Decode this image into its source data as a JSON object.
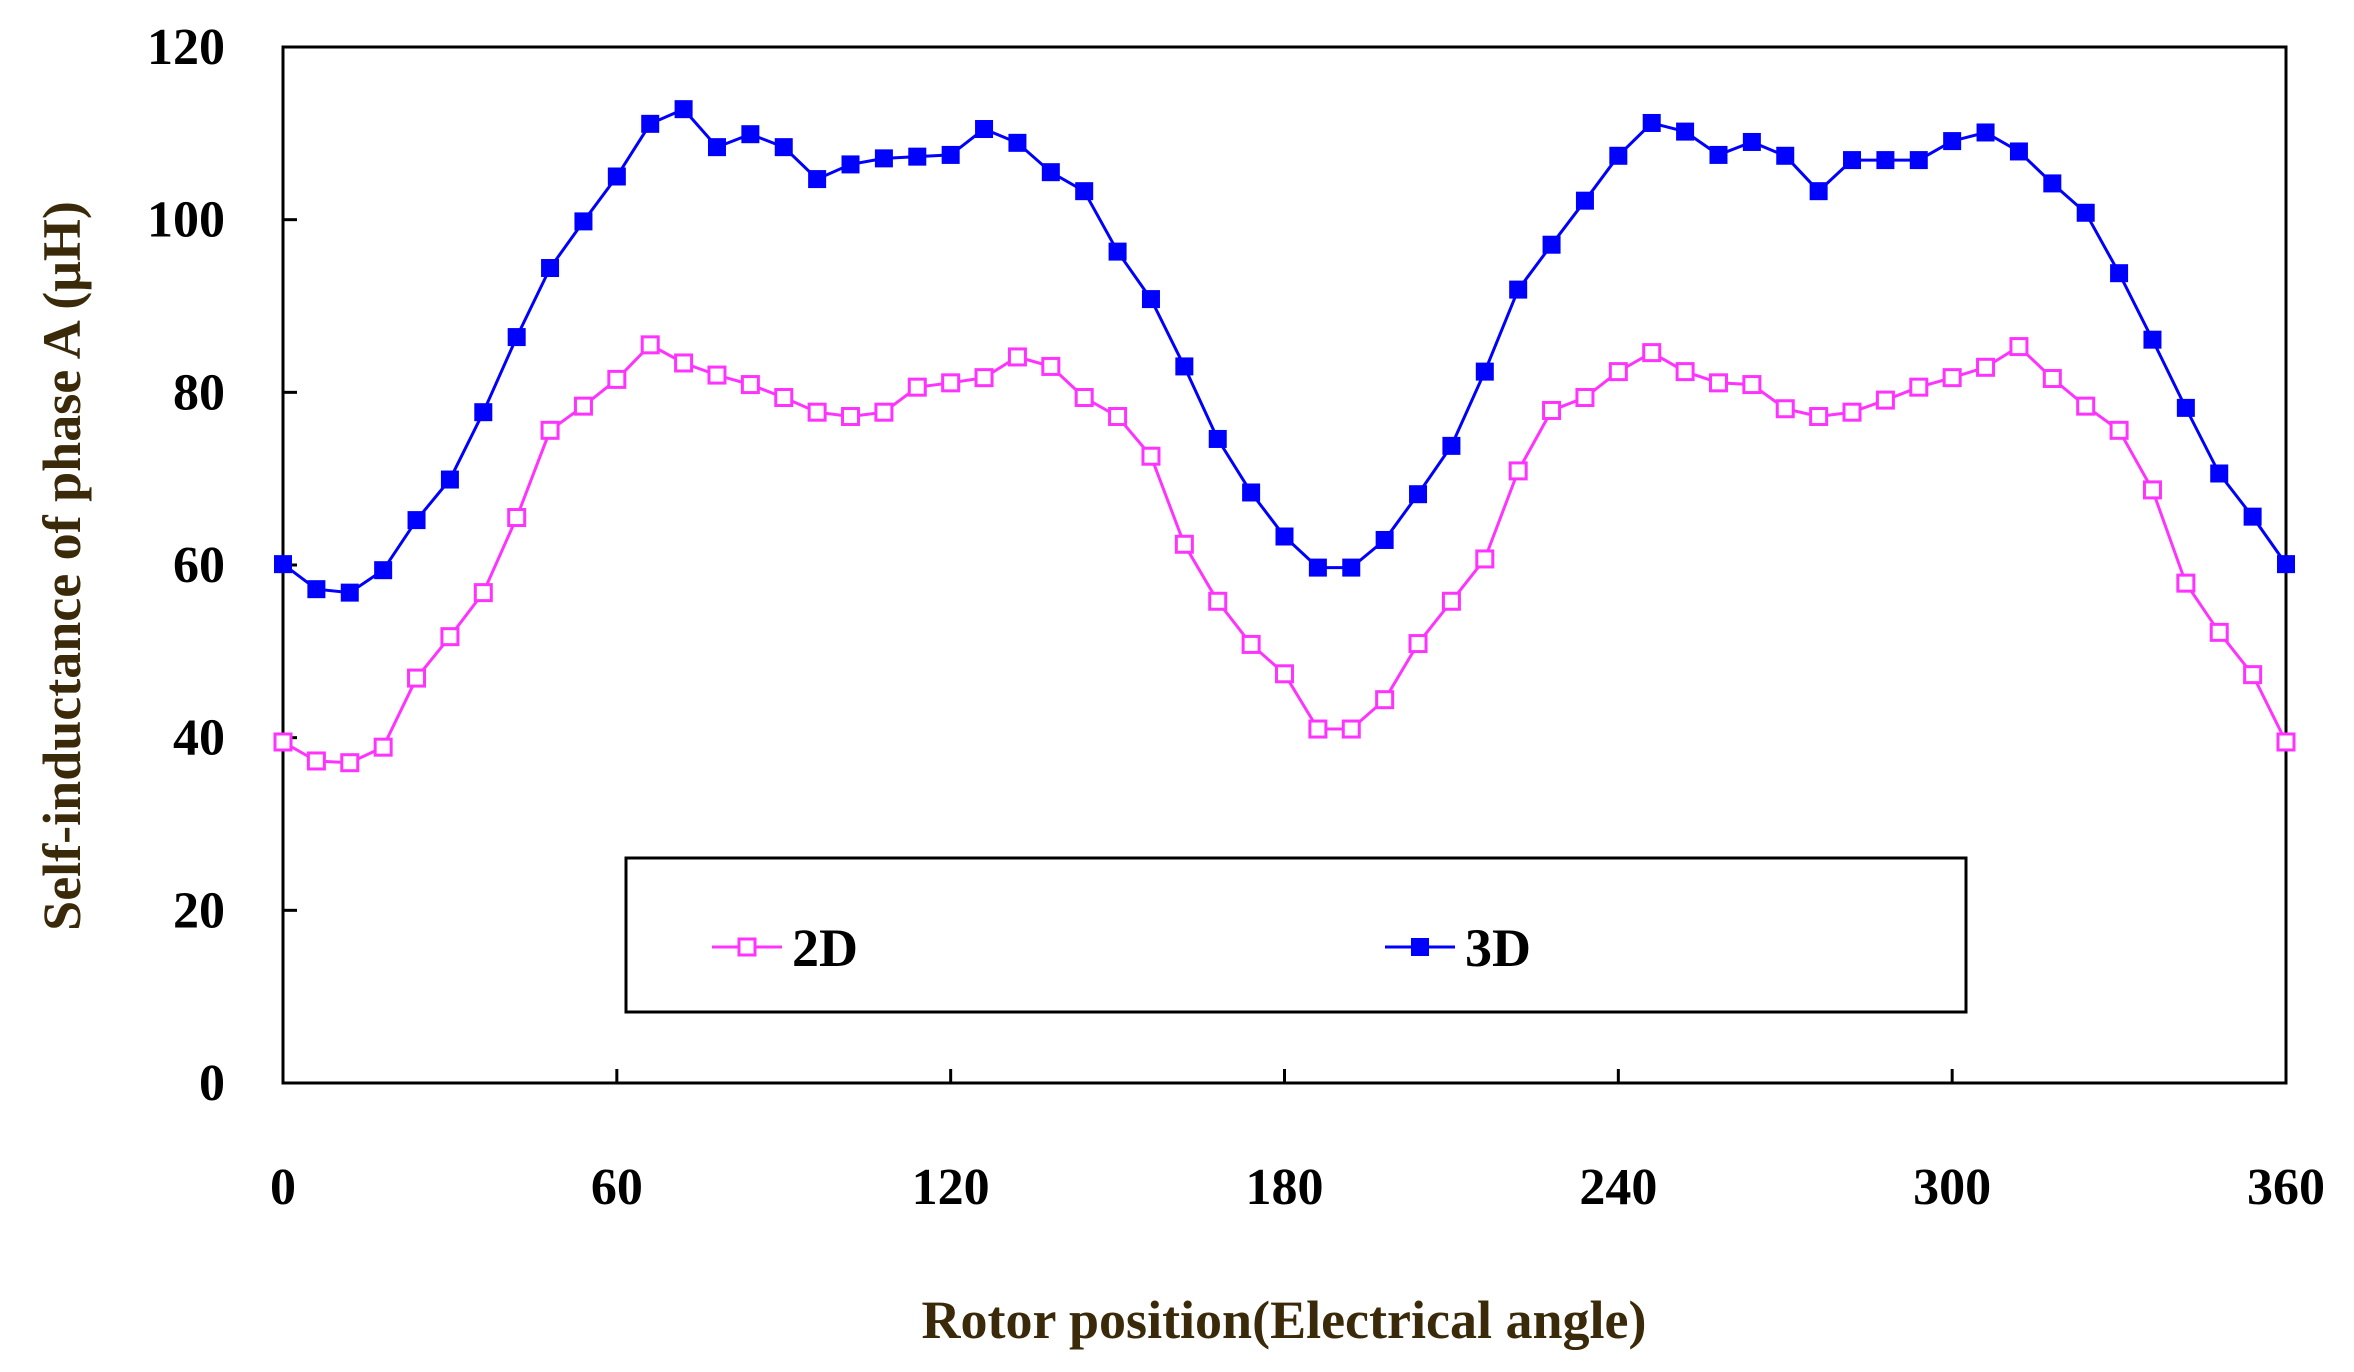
{
  "chart_data": {
    "type": "line",
    "title": "",
    "xlabel": "Rotor position(Electrical angle)",
    "ylabel": "Self-inductance  of phase A (μH)",
    "xlim": [
      0,
      360
    ],
    "ylim": [
      0,
      120
    ],
    "xticks": [
      0,
      60,
      120,
      180,
      240,
      300,
      360
    ],
    "yticks": [
      0,
      20,
      40,
      60,
      80,
      100,
      120
    ],
    "grid": false,
    "legend_position": "bottom-center",
    "x": [
      0,
      6,
      12,
      18,
      24,
      30,
      36,
      42,
      48,
      54,
      60,
      66,
      72,
      78,
      84,
      90,
      96,
      102,
      108,
      114,
      120,
      126,
      132,
      138,
      144,
      150,
      156,
      162,
      168,
      174,
      180,
      186,
      192,
      198,
      204,
      210,
      216,
      222,
      228,
      234,
      240,
      246,
      252,
      258,
      264,
      270,
      276,
      282,
      288,
      294,
      300,
      306,
      312,
      318,
      324,
      330,
      336,
      342,
      348,
      354,
      360
    ],
    "series": [
      {
        "name": "2D",
        "color": "#ff33ff",
        "marker": "open-square",
        "values": [
          39.5,
          37.3,
          37.1,
          38.9,
          46.9,
          51.7,
          56.8,
          65.5,
          75.6,
          78.4,
          81.5,
          85.5,
          83.4,
          82,
          80.9,
          79.4,
          77.7,
          77.2,
          77.7,
          80.6,
          81.1,
          81.7,
          84.1,
          83,
          79.4,
          77.2,
          72.6,
          62.4,
          55.8,
          50.8,
          47.4,
          41,
          41,
          44.4,
          50.9,
          55.8,
          60.7,
          70.9,
          77.9,
          79.4,
          82.4,
          84.6,
          82.4,
          81.1,
          80.9,
          78.1,
          77.2,
          77.7,
          79.1,
          80.6,
          81.7,
          82.9,
          85.3,
          81.6,
          78.4,
          75.6,
          68.7,
          57.9,
          52.2,
          47.3,
          39.5
        ]
      },
      {
        "name": "3D",
        "color": "#0000ff",
        "marker": "filled-square",
        "values": [
          60.1,
          57.2,
          56.8,
          59.4,
          65.2,
          69.9,
          77.7,
          86.4,
          94.4,
          99.8,
          105,
          111.1,
          112.8,
          108.4,
          109.9,
          108.4,
          104.7,
          106.4,
          107.1,
          107.3,
          107.5,
          110.5,
          108.9,
          105.5,
          103.3,
          96.3,
          90.8,
          83,
          74.6,
          68.4,
          63.3,
          59.7,
          59.7,
          62.9,
          68.2,
          73.8,
          82.4,
          91.9,
          97.1,
          102.2,
          107.4,
          111.2,
          110.2,
          107.5,
          109,
          107.4,
          103.3,
          106.9,
          106.9,
          106.9,
          109.1,
          110.1,
          107.9,
          104.2,
          100.8,
          93.8,
          86.1,
          78.2,
          70.6,
          65.6,
          60.1
        ]
      }
    ]
  }
}
